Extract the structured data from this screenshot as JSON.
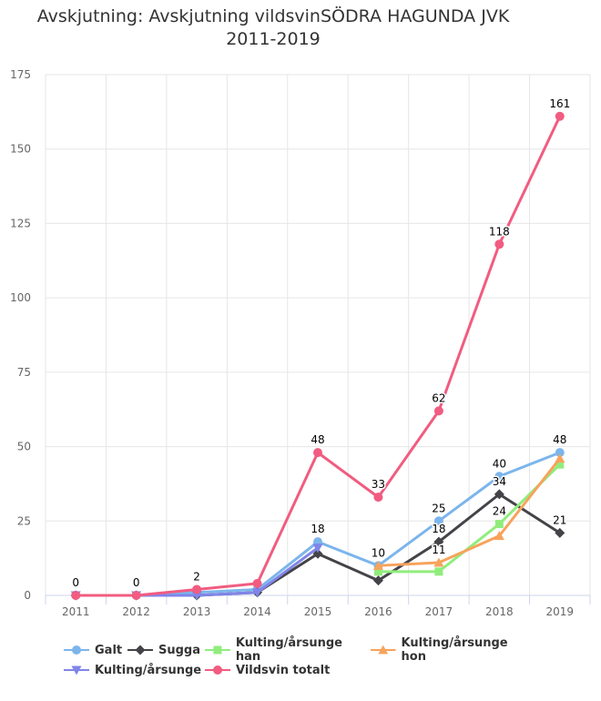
{
  "chart_data": {
    "type": "line",
    "title_line1": "Avskjutning: Avskjutning vildsvinSÖDRA HAGUNDA JVK",
    "title_line2": "2011-2019",
    "categories": [
      "2011",
      "2012",
      "2013",
      "2014",
      "2015",
      "2016",
      "2017",
      "2018",
      "2019"
    ],
    "ylim": [
      0,
      175
    ],
    "yticks": [
      0,
      25,
      50,
      75,
      100,
      125,
      150,
      175
    ],
    "grid": true,
    "legend_position": "bottom",
    "series": [
      {
        "name": "Galt",
        "color": "#7cb5ec",
        "marker": "circle",
        "values": [
          0,
          0,
          1,
          2,
          18,
          10,
          25,
          40,
          48
        ],
        "labels": [
          false,
          false,
          false,
          false,
          true,
          true,
          true,
          true,
          true
        ]
      },
      {
        "name": "Sugga",
        "color": "#434348",
        "marker": "diamond",
        "values": [
          0,
          0,
          0,
          1,
          14,
          5,
          18,
          34,
          21
        ],
        "labels": [
          false,
          false,
          false,
          false,
          false,
          false,
          true,
          true,
          true
        ]
      },
      {
        "name": "Kulting/årsunge han",
        "color": "#90ed7d",
        "marker": "square",
        "values": [
          null,
          null,
          null,
          null,
          null,
          8,
          8,
          24,
          44
        ],
        "labels": [
          false,
          false,
          false,
          false,
          false,
          false,
          false,
          true,
          false
        ]
      },
      {
        "name": "Kulting/årsunge hon",
        "color": "#f7a35c",
        "marker": "triangle",
        "values": [
          null,
          null,
          null,
          null,
          null,
          10,
          11,
          20,
          46
        ],
        "labels": [
          false,
          false,
          false,
          false,
          false,
          false,
          true,
          false,
          false
        ]
      },
      {
        "name": "Kulting/årsunge",
        "color": "#8085e9",
        "marker": "triangle-down",
        "values": [
          0,
          0,
          0,
          1,
          16,
          null,
          null,
          null,
          null
        ],
        "labels": [
          false,
          false,
          false,
          false,
          false,
          false,
          false,
          false,
          false
        ]
      },
      {
        "name": "Vildsvin totalt",
        "color": "#f15c80",
        "marker": "circle",
        "values": [
          0,
          0,
          2,
          4,
          48,
          33,
          62,
          118,
          161
        ],
        "labels": [
          true,
          true,
          true,
          false,
          true,
          true,
          true,
          true,
          true
        ]
      }
    ]
  }
}
